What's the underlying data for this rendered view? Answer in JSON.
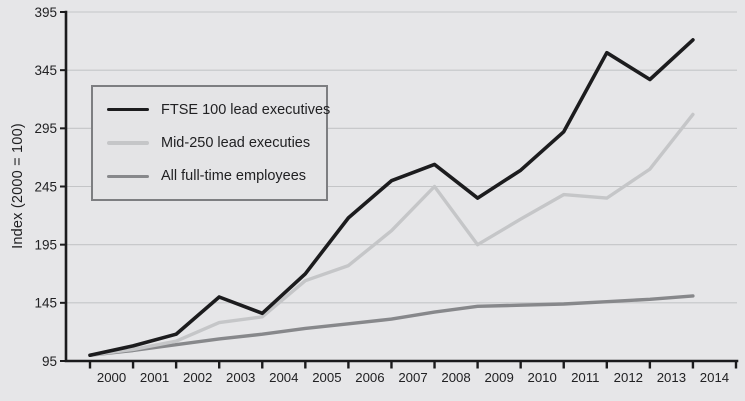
{
  "colors": {
    "background": "#e6e6e8",
    "axis": "#1b1b1d",
    "gridline": "#c4c5c7",
    "text": "#212123",
    "legend_border": "#7d7e81"
  },
  "chart_data": {
    "type": "line",
    "title": "",
    "xlabel": "",
    "ylabel": "Index (2000 = 100)",
    "ylim": [
      95,
      395
    ],
    "y_ticks": [
      95,
      145,
      195,
      245,
      295,
      345,
      395
    ],
    "grid": "horizontal gridlines on",
    "legend_position": "upper left inside plot, boxed",
    "x": [
      2000,
      2001,
      2002,
      2003,
      2004,
      2005,
      2006,
      2007,
      2008,
      2009,
      2010,
      2011,
      2012,
      2013,
      2014
    ],
    "x_tick_labels": [
      "2000",
      "2001",
      "2002",
      "2003",
      "2004",
      "2005",
      "2006",
      "2007",
      "2008",
      "2009",
      "2010",
      "2011",
      "2012",
      "2013",
      "2014"
    ],
    "series": [
      {
        "name": "All full-time employees",
        "color": "#87888b",
        "line_width": 3.4,
        "values": [
          100,
          104,
          109,
          114,
          118,
          123,
          127,
          131,
          137,
          142,
          143,
          144,
          146,
          148,
          151
        ]
      },
      {
        "name": "Mid-250 lead executies",
        "color": "#c5c6c8",
        "line_width": 3.4,
        "values": [
          100,
          105,
          112,
          128,
          133,
          164,
          177,
          207,
          245,
          195,
          217,
          238,
          235,
          260,
          307
        ]
      },
      {
        "name": "FTSE 100 lead executives",
        "color": "#1c1c1e",
        "line_width": 3.6,
        "values": [
          100,
          108,
          118,
          150,
          136,
          170,
          218,
          250,
          264,
          235,
          259,
          292,
          360,
          337,
          371
        ]
      }
    ],
    "legend_order": [
      "FTSE 100 lead executives",
      "Mid-250 lead executies",
      "All full-time employees"
    ]
  }
}
